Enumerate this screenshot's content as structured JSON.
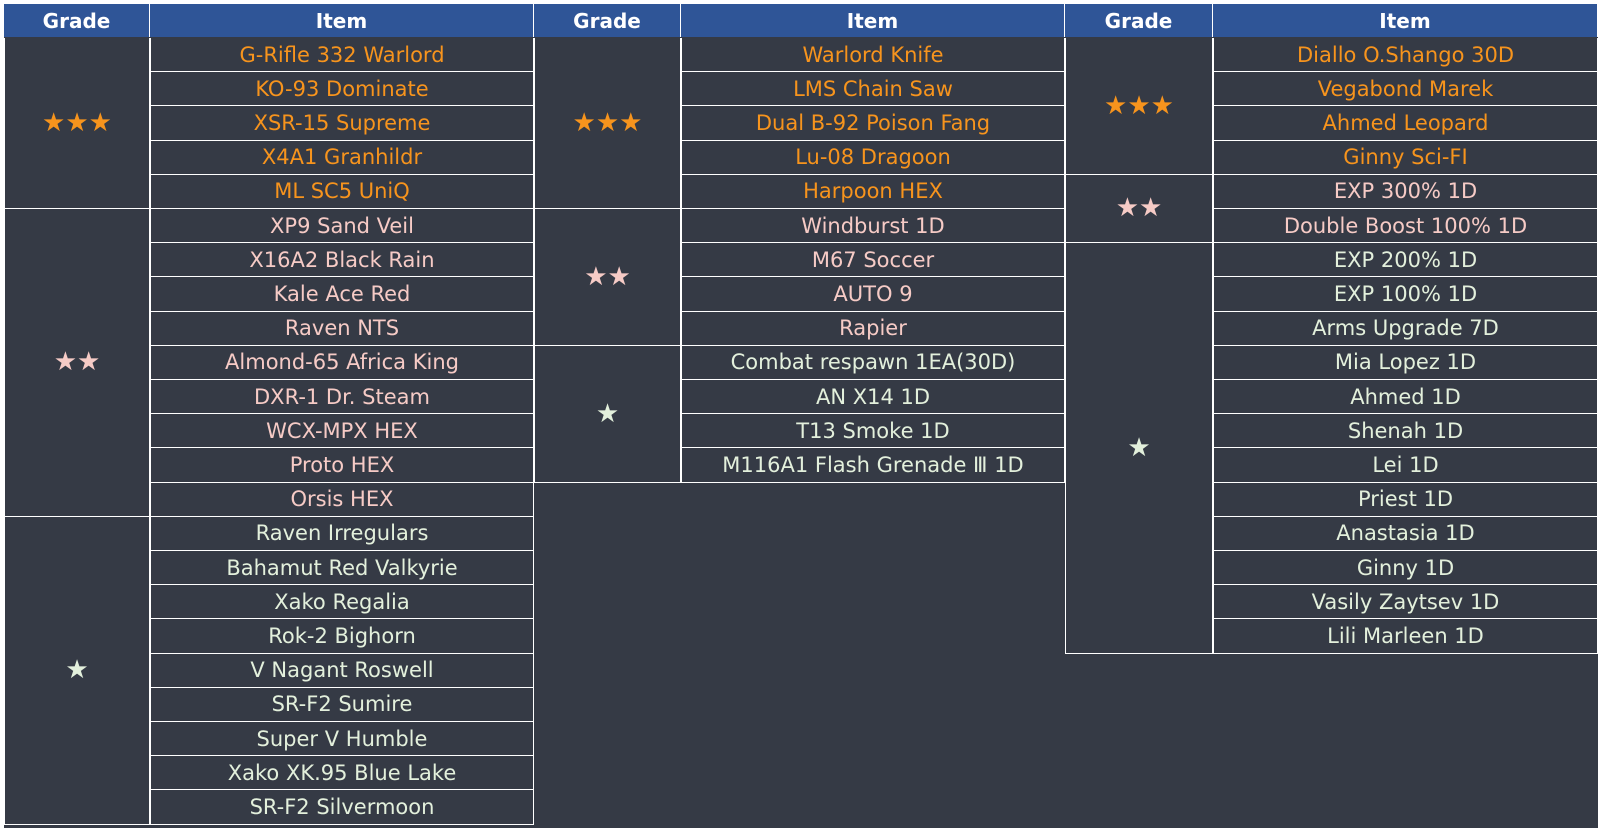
{
  "tables": [
    {
      "headers": [
        "Grade",
        "Item"
      ],
      "groups": [
        {
          "grade": "★★★",
          "color": "#f7941d",
          "items": [
            "G-Rifle 332 Warlord",
            "KO-93 Dominate",
            "XSR-15 Supreme",
            "X4A1 Granhildr",
            "ML SC5 UniQ"
          ]
        },
        {
          "grade": "★★",
          "color": "#f6cbc6",
          "items": [
            "XP9 Sand Veil",
            "X16A2 Black Rain",
            "Kale Ace Red",
            "Raven NTS",
            "Almond-65 Africa King",
            "DXR-1 Dr. Steam",
            "WCX-MPX HEX",
            "Proto HEX",
            "Orsis HEX"
          ]
        },
        {
          "grade": "★",
          "color": "#e3f0dc",
          "items": [
            "Raven Irregulars",
            "Bahamut Red Valkyrie",
            "Xako Regalia",
            "Rok-2 Bighorn",
            "V Nagant Roswell",
            "SR-F2 Sumire",
            "Super V Humble",
            "Xako XK.95 Blue Lake",
            "SR-F2 Silvermoon"
          ]
        }
      ]
    },
    {
      "headers": [
        "Grade",
        "Item"
      ],
      "groups": [
        {
          "grade": "★★★",
          "color": "#f7941d",
          "items": [
            "Warlord Knife",
            "LMS Chain Saw",
            "Dual B-92 Poison Fang",
            "Lu-08 Dragoon",
            "Harpoon HEX"
          ]
        },
        {
          "grade": "★★",
          "color": "#f6cbc6",
          "items": [
            "Windburst 1D",
            "M67 Soccer",
            "AUTO 9",
            "Rapier"
          ]
        },
        {
          "grade": "★",
          "color": "#e3f0dc",
          "items": [
            "Combat respawn 1EA(30D)",
            "AN X14 1D",
            "T13 Smoke 1D",
            "M116A1 Flash Grenade Ⅲ 1D"
          ]
        }
      ]
    },
    {
      "headers": [
        "Grade",
        "Item"
      ],
      "groups": [
        {
          "grade": "★★★",
          "color": "#f7941d",
          "items": [
            "Diallo O.Shango 30D",
            "Vegabond Marek",
            "Ahmed Leopard",
            "Ginny Sci-FI"
          ]
        },
        {
          "grade": "★★",
          "color": "#f6cbc6",
          "items": [
            "EXP 300% 1D",
            "Double Boost 100% 1D"
          ]
        },
        {
          "grade": "★",
          "color": "#e3f0dc",
          "items": [
            "EXP 200% 1D",
            "EXP 100% 1D",
            "Arms Upgrade 7D",
            "Mia Lopez 1D",
            "Ahmed 1D",
            "Shenah 1D",
            "Lei 1D",
            "Priest 1D",
            "Anastasia 1D",
            "Ginny 1D",
            "Vasily Zaytsev 1D",
            "Lili Marleen 1D"
          ]
        }
      ]
    }
  ]
}
